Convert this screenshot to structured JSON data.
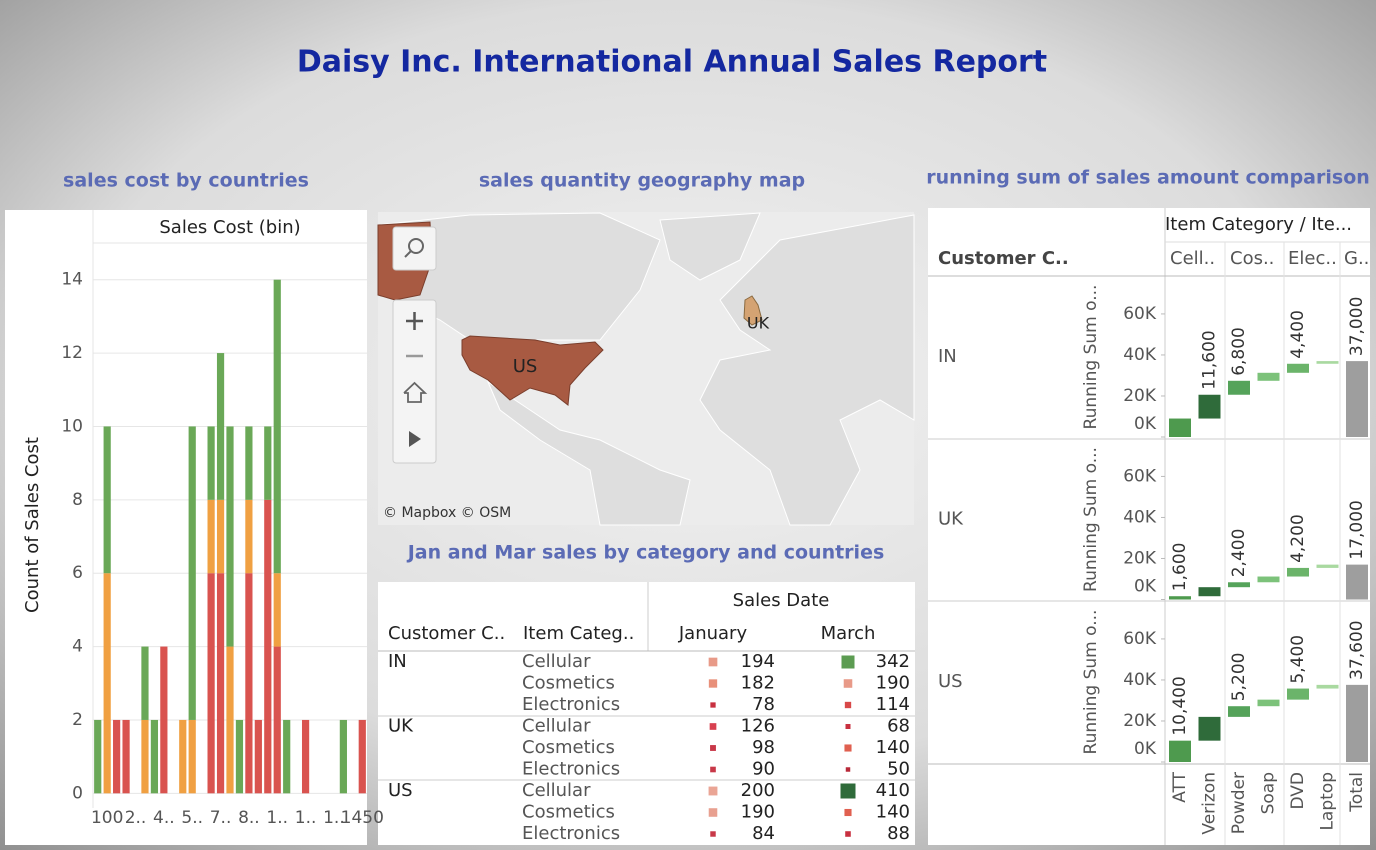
{
  "title": "Daisy Inc. International Annual Sales Report",
  "panel_titles": [
    "sales cost by countries",
    "sales quantity geography map",
    "Jan and Mar sales by category and countries",
    "running sum of sales amount comparison"
  ],
  "chart_data": [
    {
      "type": "bar",
      "stacked": true,
      "title": "Sales Cost (bin)",
      "y_label": "Count of Sales Cost",
      "categories": [
        null,
        "100",
        null,
        null,
        "2..",
        null,
        null,
        "4..",
        null,
        null,
        "5..",
        null,
        null,
        "7..",
        null,
        null,
        "8..",
        null,
        null,
        "1..",
        null,
        null,
        "1..",
        null,
        null,
        "1..",
        null,
        null,
        "1450"
      ],
      "series": [
        {
          "color": "#d9534f",
          "values": [
            null,
            null,
            2,
            2,
            null,
            null,
            null,
            4,
            null,
            null,
            null,
            null,
            6,
            6,
            null,
            null,
            6,
            2,
            8,
            4,
            null,
            null,
            2,
            null,
            null,
            null,
            null,
            null,
            2
          ]
        },
        {
          "color": "#f0a042",
          "values": [
            null,
            6,
            null,
            null,
            null,
            2,
            null,
            null,
            null,
            2,
            2,
            null,
            2,
            2,
            4,
            null,
            2,
            null,
            null,
            2,
            null,
            null,
            null,
            null,
            null,
            null,
            null,
            null,
            null
          ]
        },
        {
          "color": "#6aa857",
          "values": [
            2,
            4,
            null,
            null,
            null,
            2,
            2,
            null,
            null,
            null,
            8,
            null,
            2,
            4,
            6,
            2,
            2,
            null,
            2,
            8,
            2,
            null,
            null,
            null,
            null,
            null,
            2,
            null,
            null
          ]
        }
      ],
      "ylim": [
        -0.4,
        15
      ],
      "yticks": [
        0,
        2,
        4,
        6,
        8,
        10,
        12,
        14
      ],
      "grid": true
    },
    {
      "type": "waterfall",
      "title": "Item Category / Ite...",
      "row_header": "Customer C..",
      "y_label": "Running Sum o...",
      "groups": [
        "Cell..",
        "Cos..",
        "Elec..",
        "G.."
      ],
      "categories": [
        "ATT",
        "Verizon",
        "Powder",
        "Soap",
        "DVD",
        "Laptop"
      ],
      "total_name": "Total",
      "colors": [
        "#4e9a4e",
        "#2f6b3a",
        "#55a35a",
        "#7cc27a",
        "#6bb46a",
        "#a9d9a0"
      ],
      "total_color": "#9e9e9e",
      "series": [
        {
          "name": "IN",
          "values": [
            9000,
            11600,
            6800,
            3900,
            4400,
            1300
          ],
          "value_labels": [
            null,
            "11,600",
            "6,800",
            null,
            "4,400",
            null
          ],
          "total": 37000,
          "total_label": "37,000"
        },
        {
          "name": "UK",
          "values": [
            1600,
            4400,
            2400,
            2800,
            4200,
            1600
          ],
          "value_labels": [
            "1,600",
            null,
            "2,400",
            null,
            "4,200",
            null
          ],
          "total": 17000,
          "total_label": "17,000"
        },
        {
          "name": "US",
          "values": [
            10400,
            11600,
            5200,
            3200,
            5400,
            1800
          ],
          "value_labels": [
            "10,400",
            null,
            "5,200",
            null,
            "5,400",
            null
          ],
          "total": 37600,
          "total_label": "37,600"
        }
      ],
      "ylim": [
        0,
        78000
      ],
      "yticks": [
        {
          "value": 0,
          "label": "0K"
        },
        {
          "value": 20000,
          "label": "20K"
        },
        {
          "value": 40000,
          "label": "40K"
        },
        {
          "value": 60000,
          "label": "60K"
        }
      ]
    }
  ],
  "map": {
    "labels": [
      "US",
      "UK"
    ],
    "attribution": "© Mapbox  © OSM"
  },
  "table": {
    "row_headers": [
      "Customer C..",
      "Item Categ.."
    ],
    "column_header": "Sales Date",
    "columns": [
      "January",
      "March"
    ],
    "groups": [
      {
        "country": "IN",
        "rows": [
          {
            "category": "Cellular",
            "values": [
              194,
              342
            ],
            "colors": [
              "#e89a88",
              "#5c9c52"
            ]
          },
          {
            "category": "Cosmetics",
            "values": [
              182,
              190
            ],
            "colors": [
              "#e8907a",
              "#e89a88"
            ]
          },
          {
            "category": "Electronics",
            "values": [
              78,
              114
            ],
            "colors": [
              "#c83040",
              "#d84848"
            ]
          }
        ]
      },
      {
        "country": "UK",
        "rows": [
          {
            "category": "Cellular",
            "values": [
              126,
              68
            ],
            "colors": [
              "#d84050",
              "#c83040"
            ]
          },
          {
            "category": "Cosmetics",
            "values": [
              98,
              140
            ],
            "colors": [
              "#c83848",
              "#e06050"
            ]
          },
          {
            "category": "Electronics",
            "values": [
              90,
              50
            ],
            "colors": [
              "#c83848",
              "#b82838"
            ]
          }
        ]
      },
      {
        "country": "US",
        "rows": [
          {
            "category": "Cellular",
            "values": [
              200,
              410
            ],
            "colors": [
              "#eaa595",
              "#2f6b3a"
            ]
          },
          {
            "category": "Cosmetics",
            "values": [
              190,
              140
            ],
            "colors": [
              "#e8a090",
              "#e06050"
            ]
          },
          {
            "category": "Electronics",
            "values": [
              84,
              88
            ],
            "colors": [
              "#c83848",
              "#c83040"
            ]
          }
        ]
      }
    ]
  }
}
